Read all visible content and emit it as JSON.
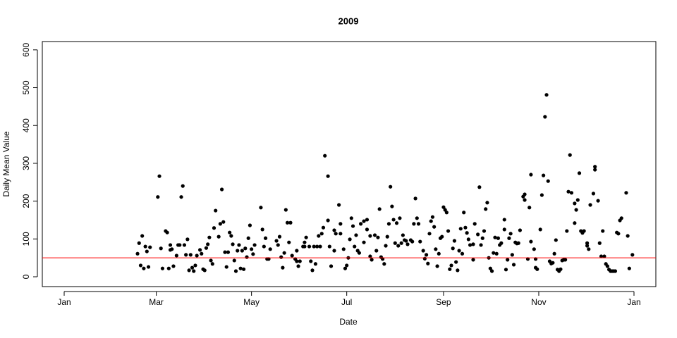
{
  "chart_data": {
    "type": "scatter",
    "title": "2009",
    "x_label": "Date",
    "y_label": "Daily Mean Value",
    "x": [
      48,
      49,
      50,
      51,
      52,
      53,
      54,
      55,
      56,
      61,
      62,
      63,
      64,
      66,
      67,
      68,
      69,
      69,
      70,
      71,
      73,
      74,
      75,
      76,
      77,
      78,
      79,
      80,
      81,
      82,
      83,
      84,
      85,
      86,
      88,
      89,
      90,
      91,
      92,
      93,
      94,
      95,
      96,
      97,
      98,
      100,
      101,
      102,
      103,
      104,
      105,
      106,
      107,
      108,
      109,
      110,
      111,
      112,
      113,
      114,
      115,
      116,
      117,
      118,
      119,
      120,
      121,
      122,
      123,
      127,
      128,
      129,
      130,
      131,
      132,
      133,
      137,
      138,
      139,
      140,
      141,
      142,
      143,
      144,
      145,
      146,
      147,
      149,
      150,
      150,
      151,
      152,
      154,
      155,
      155,
      156,
      158,
      159,
      160,
      161,
      162,
      163,
      164,
      165,
      166,
      167,
      168,
      170,
      170,
      171,
      172,
      174,
      174,
      175,
      177,
      178,
      178,
      180,
      181,
      182,
      183,
      184,
      185,
      186,
      187,
      188,
      189,
      190,
      191,
      193,
      193,
      195,
      195,
      197,
      197,
      198,
      200,
      201,
      202,
      203,
      204,
      205,
      206,
      207,
      208,
      209,
      210,
      211,
      212,
      213,
      214,
      215,
      216,
      217,
      218,
      219,
      220,
      221,
      223,
      224,
      225,
      226,
      227,
      228,
      229,
      231,
      232,
      233,
      234,
      235,
      236,
      237,
      238,
      239,
      240,
      241,
      242,
      243,
      244,
      245,
      246,
      247,
      248,
      249,
      250,
      251,
      252,
      253,
      254,
      255,
      256,
      257,
      258,
      259,
      260,
      261,
      263,
      263,
      264,
      266,
      267,
      268,
      269,
      270,
      271,
      272,
      273,
      274,
      275,
      276,
      277,
      278,
      279,
      280,
      281,
      283,
      283,
      284,
      285,
      286,
      287,
      288,
      289,
      290,
      291,
      292,
      293,
      295,
      296,
      296,
      298,
      299,
      300,
      300,
      302,
      303,
      303,
      304,
      306,
      307,
      308,
      309,
      310,
      311,
      312,
      313,
      314,
      315,
      316,
      317,
      318,
      319,
      320,
      321,
      322,
      323,
      324,
      325,
      326,
      328,
      328,
      329,
      330,
      331,
      332,
      333,
      334,
      336,
      336,
      337,
      338,
      340,
      341,
      341,
      343,
      344,
      345,
      346,
      347,
      348,
      349,
      350,
      351,
      352,
      353,
      354,
      355,
      356,
      357,
      358,
      361,
      362,
      363,
      365
    ],
    "values": [
      61,
      89,
      30,
      108,
      22,
      80,
      67,
      26,
      78,
      211,
      266,
      75,
      22,
      121,
      117,
      22,
      71,
      84,
      73,
      28,
      56,
      84,
      84,
      211,
      240,
      84,
      58,
      99,
      17,
      58,
      24,
      15,
      30,
      56,
      71,
      61,
      20,
      17,
      76,
      86,
      104,
      43,
      34,
      129,
      175,
      106,
      140,
      231,
      145,
      65,
      26,
      65,
      117,
      108,
      86,
      43,
      15,
      69,
      84,
      22,
      69,
      20,
      75,
      52,
      102,
      136,
      73,
      60,
      84,
      183,
      125,
      80,
      102,
      47,
      47,
      73,
      95,
      84,
      106,
      52,
      24,
      63,
      177,
      143,
      91,
      143,
      56,
      47,
      41,
      69,
      28,
      41,
      80,
      91,
      80,
      104,
      80,
      41,
      17,
      80,
      34,
      80,
      108,
      80,
      114,
      130,
      320,
      266,
      149,
      80,
      28,
      69,
      123,
      114,
      190,
      140,
      114,
      73,
      22,
      30,
      50,
      99,
      155,
      134,
      80,
      110,
      69,
      63,
      140,
      147,
      91,
      125,
      151,
      108,
      54,
      45,
      110,
      69,
      104,
      179,
      52,
      47,
      34,
      82,
      106,
      140,
      238,
      186,
      151,
      89,
      142,
      82,
      155,
      89,
      110,
      97,
      95,
      86,
      97,
      93,
      140,
      207,
      155,
      140,
      93,
      69,
      48,
      58,
      35,
      114,
      147,
      158,
      132,
      73,
      28,
      61,
      102,
      106,
      184,
      177,
      170,
      121,
      20,
      30,
      75,
      95,
      39,
      17,
      69,
      127,
      61,
      170,
      130,
      116,
      99,
      84,
      45,
      86,
      140,
      112,
      237,
      84,
      102,
      121,
      179,
      196,
      50,
      22,
      15,
      63,
      104,
      61,
      102,
      84,
      89,
      151,
      125,
      19,
      45,
      102,
      114,
      58,
      32,
      91,
      88,
      89,
      123,
      212,
      218,
      203,
      47,
      183,
      270,
      93,
      73,
      47,
      24,
      20,
      125,
      216,
      268,
      423,
      481,
      253,
      41,
      35,
      37,
      61,
      97,
      19,
      15,
      20,
      43,
      45,
      45,
      121,
      225,
      322,
      222,
      142,
      194,
      177,
      203,
      274,
      121,
      116,
      121,
      82,
      89,
      73,
      190,
      220,
      291,
      283,
      201,
      89,
      54,
      121,
      54,
      34,
      28,
      19,
      15,
      15,
      15,
      15,
      117,
      114,
      149,
      155,
      222,
      108,
      22,
      58
    ],
    "color": "#000000",
    "hline": {
      "value": 50,
      "color": "#ff0000"
    },
    "xlim": [
      -13,
      380
    ],
    "xticks": [
      {
        "value": 1,
        "label": "Jan"
      },
      {
        "value": 60,
        "label": "Mar"
      },
      {
        "value": 121,
        "label": "May"
      },
      {
        "value": 182,
        "label": "Jul"
      },
      {
        "value": 244,
        "label": "Sep"
      },
      {
        "value": 305,
        "label": "Nov"
      },
      {
        "value": 366,
        "label": "Jan"
      }
    ],
    "ylim": [
      -26,
      622
    ],
    "yticks": [
      0,
      100,
      200,
      300,
      400,
      500,
      600
    ],
    "grid": false
  }
}
